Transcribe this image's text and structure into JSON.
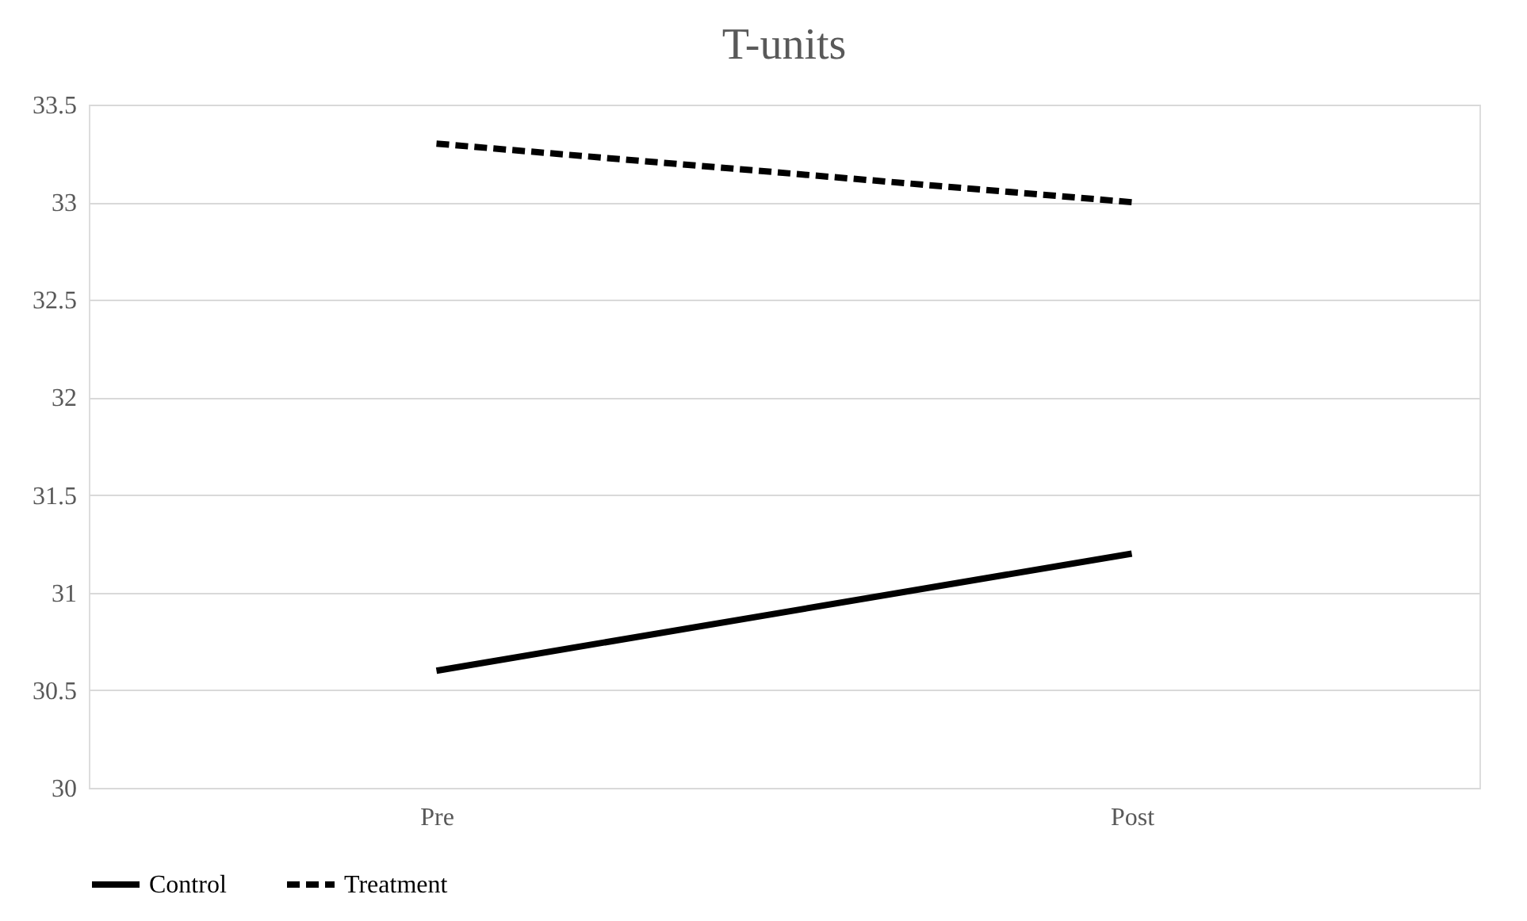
{
  "chart_data": {
    "type": "line",
    "title": "T-units",
    "categories": [
      "Pre",
      "Post"
    ],
    "series": [
      {
        "name": "Control",
        "color": "#000000",
        "line_style": "solid",
        "values": [
          30.6,
          31.2
        ]
      },
      {
        "name": "Treatment",
        "color": "#000000",
        "line_style": "dashed",
        "values": [
          33.3,
          33.0
        ]
      }
    ],
    "ylim": [
      30,
      33.5
    ],
    "yticks": [
      30,
      30.5,
      31,
      31.5,
      32,
      32.5,
      33,
      33.5
    ],
    "grid": "y",
    "legend": "bottom",
    "marker": "none"
  }
}
